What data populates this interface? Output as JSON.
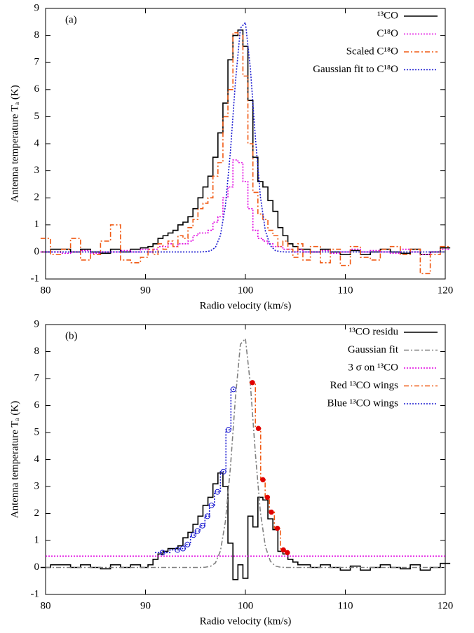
{
  "chart_data": [
    {
      "type": "line",
      "panel_label": "(a)",
      "x_label": "Radio velocity (km/s)",
      "y_label": "Antenna temperature Tₐ (K)",
      "xlim": [
        80,
        120
      ],
      "ylim": [
        -1,
        9
      ],
      "xticks": [
        80,
        90,
        100,
        110,
        120
      ],
      "yticks": [
        -1,
        0,
        1,
        2,
        3,
        4,
        5,
        6,
        7,
        8,
        9
      ],
      "legend": "upper right",
      "x": [
        80,
        81,
        82,
        83,
        84,
        85,
        86,
        87,
        88,
        89,
        90,
        90.5,
        91,
        91.5,
        92,
        92.5,
        93,
        93.5,
        94,
        94.5,
        95,
        95.5,
        96,
        96.5,
        97,
        97.5,
        98,
        98.5,
        99,
        99.5,
        100,
        100.5,
        101,
        101.5,
        102,
        102.5,
        103,
        103.5,
        104,
        104.5,
        105,
        105.5,
        106,
        107,
        108,
        109,
        110,
        111,
        112,
        113,
        114,
        115,
        116,
        117,
        118,
        119,
        120
      ],
      "series": [
        {
          "name": "¹³CO",
          "color": "#000000",
          "style": "solid",
          "steps": true,
          "values": [
            0,
            0.1,
            0.1,
            0,
            0.1,
            0,
            -0.05,
            0.1,
            0,
            0.1,
            0.15,
            0.2,
            0.3,
            0.5,
            0.6,
            0.7,
            0.8,
            1.0,
            1.1,
            1.3,
            1.6,
            2.0,
            2.4,
            2.8,
            3.5,
            4.4,
            5.5,
            7.1,
            8.0,
            8.2,
            7.6,
            5.6,
            3.5,
            2.6,
            2.4,
            1.9,
            1.5,
            0.9,
            0.6,
            0.3,
            0.2,
            0.1,
            0.1,
            0,
            0.1,
            0,
            -0.1,
            0.05,
            -0.1,
            0,
            0.1,
            0,
            -0.05,
            0.1,
            -0.1,
            0,
            0.15
          ]
        },
        {
          "name": "C¹⁸O",
          "color": "#e000e0",
          "style": "dotted",
          "steps": true,
          "values": [
            0,
            0,
            -0.05,
            0,
            0.05,
            -0.05,
            0,
            0,
            0.05,
            0,
            0.1,
            0,
            0.1,
            0.2,
            0.2,
            0.3,
            0.2,
            0.3,
            0.3,
            0.4,
            0.6,
            0.7,
            0.7,
            0.8,
            1.1,
            1.3,
            2.0,
            2.4,
            3.4,
            3.3,
            2.6,
            1.6,
            0.8,
            0.5,
            0.4,
            0.3,
            0.2,
            0.2,
            0.1,
            0.1,
            0,
            0.1,
            0,
            0,
            0.05,
            -0.05,
            0,
            0.1,
            0,
            0.05,
            0,
            -0.05,
            0.1,
            0,
            -0.1,
            0,
            0.1
          ]
        },
        {
          "name": "Scaled C¹⁸O",
          "color": "#f05a14",
          "style": "dashdot",
          "steps": true,
          "values": [
            0.5,
            -0.1,
            0.1,
            0.5,
            -0.3,
            -0.1,
            0.4,
            1.0,
            -0.3,
            -0.4,
            -0.2,
            0.1,
            -0.1,
            0.3,
            0.1,
            0.4,
            0.2,
            0.6,
            0.5,
            0.9,
            1.2,
            1.6,
            1.8,
            2.0,
            2.8,
            3.3,
            5.0,
            6.0,
            8.1,
            8.0,
            6.5,
            4.0,
            2.2,
            1.4,
            1.2,
            0.8,
            0.6,
            0.2,
            0.4,
            0.1,
            -0.2,
            0.3,
            -0.3,
            0.2,
            -0.4,
            0.1,
            -0.5,
            0.2,
            -0.2,
            -0.3,
            0.1,
            0.2,
            -0.1,
            0.1,
            -0.8,
            -0.1,
            0.2
          ]
        },
        {
          "name": "Gaussian fit to C¹⁸O",
          "color": "#1a1ad0",
          "style": "dotted",
          "steps": false,
          "values": [
            0,
            0,
            0,
            0,
            0,
            0,
            0,
            0,
            0,
            0,
            0,
            0,
            0,
            0,
            0,
            0,
            0,
            0,
            0,
            0,
            0,
            0,
            0.01,
            0.04,
            0.17,
            0.61,
            1.71,
            3.71,
            6.28,
            8.27,
            8.48,
            6.77,
            4.21,
            2.04,
            0.77,
            0.23,
            0.05,
            0.01,
            0,
            0,
            0,
            0,
            0,
            0,
            0,
            0,
            0,
            0,
            0,
            0,
            0,
            0,
            0,
            0,
            0,
            0,
            0
          ]
        }
      ]
    },
    {
      "type": "line",
      "panel_label": "(b)",
      "x_label": "Radio velocity (km/s)",
      "y_label": "Antenna temperature Tₐ (K)",
      "xlim": [
        80,
        120
      ],
      "ylim": [
        -1,
        9
      ],
      "xticks": [
        80,
        90,
        100,
        110,
        120
      ],
      "yticks": [
        -1,
        0,
        1,
        2,
        3,
        4,
        5,
        6,
        7,
        8,
        9
      ],
      "legend": "upper right",
      "x": [
        80,
        81,
        82,
        83,
        84,
        85,
        86,
        87,
        88,
        89,
        90,
        90.5,
        91,
        91.5,
        92,
        92.5,
        93,
        93.5,
        94,
        94.5,
        95,
        95.5,
        96,
        96.5,
        97,
        97.5,
        98,
        98.5,
        99,
        99.5,
        100,
        100.5,
        101,
        101.5,
        102,
        102.5,
        103,
        103.5,
        104,
        104.5,
        105,
        105.5,
        106,
        107,
        108,
        109,
        110,
        111,
        112,
        113,
        114,
        115,
        116,
        117,
        118,
        119,
        120
      ],
      "series": [
        {
          "name": "¹³CO residu",
          "color": "#000000",
          "style": "solid",
          "steps": true,
          "values": [
            0,
            0.1,
            0.1,
            0,
            0.1,
            0,
            -0.05,
            0.1,
            0,
            0.1,
            0,
            0.1,
            0.3,
            0.5,
            0.6,
            0.7,
            0.7,
            0.8,
            1.1,
            1.3,
            1.6,
            1.9,
            2.3,
            2.6,
            3.1,
            3.5,
            3.0,
            0.9,
            -0.45,
            0.1,
            -0.4,
            1.9,
            1.5,
            2.6,
            2.5,
            1.8,
            1.4,
            0.6,
            0.5,
            0.3,
            0.2,
            0.1,
            0.1,
            0,
            0.1,
            0,
            -0.1,
            0.05,
            -0.1,
            0,
            0.1,
            0,
            -0.05,
            0.1,
            -0.1,
            0,
            0.15
          ]
        },
        {
          "name": "Gaussian fit",
          "color": "#808080",
          "style": "dashdot",
          "steps": false,
          "values": [
            0,
            0,
            0,
            0,
            0,
            0,
            0,
            0,
            0,
            0,
            0,
            0,
            0,
            0,
            0,
            0,
            0,
            0,
            0,
            0,
            0,
            0,
            0.01,
            0.04,
            0.17,
            0.61,
            1.71,
            3.71,
            6.28,
            8.27,
            8.48,
            6.77,
            4.21,
            2.04,
            0.77,
            0.23,
            0.05,
            0.01,
            0,
            0,
            0,
            0,
            0,
            0,
            0,
            0,
            0,
            0,
            0,
            0,
            0,
            0,
            0,
            0,
            0,
            0,
            0
          ]
        },
        {
          "name": "3 σ on ¹³CO",
          "color": "#e000e0",
          "style": "dotted",
          "steps": false,
          "x": [
            80,
            120
          ],
          "values": [
            0.42,
            0.42
          ]
        },
        {
          "name": "Red ¹³CO wings",
          "color": "#f05a14",
          "style": "dashdot",
          "steps": true,
          "marker": "filled",
          "marker_color": "#e00000",
          "x": [
            100.7,
            101.3,
            101.75,
            102.2,
            102.6,
            103.2,
            103.8,
            104.2
          ],
          "values": [
            6.85,
            5.15,
            3.25,
            2.6,
            2.05,
            1.45,
            0.65,
            0.55
          ]
        },
        {
          "name": "Blue ¹³CO wings",
          "color": "#1a1ad0",
          "style": "dotted",
          "steps": true,
          "marker": "open",
          "marker_color": "#1a1ad0",
          "x": [
            91.7,
            93.2,
            93.75,
            94.2,
            94.8,
            95.2,
            95.7,
            96.2,
            96.6,
            97.2,
            97.8,
            98.3,
            98.8
          ],
          "values": [
            0.55,
            0.65,
            0.7,
            0.85,
            1.2,
            1.35,
            1.55,
            1.9,
            2.3,
            2.8,
            3.55,
            5.1,
            6.6
          ]
        }
      ]
    }
  ]
}
